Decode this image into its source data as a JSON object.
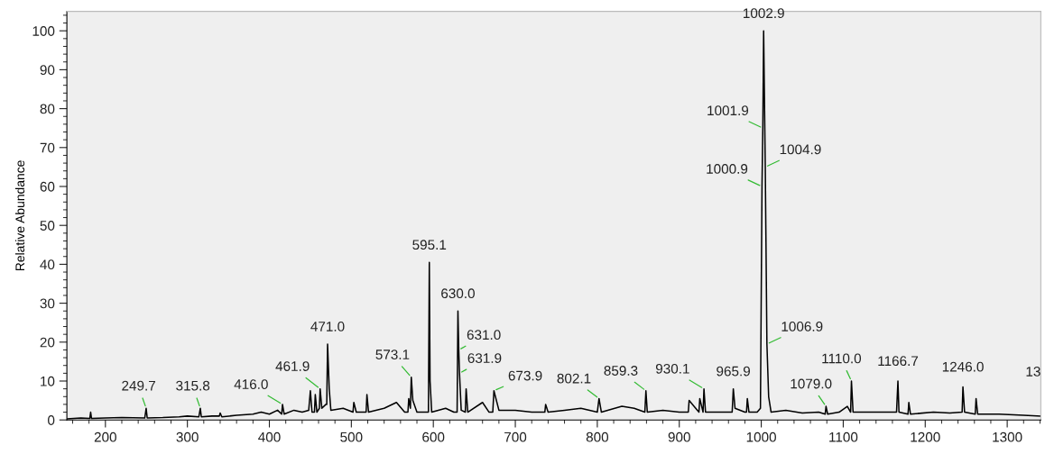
{
  "chart_data": {
    "type": "line",
    "ylabel": "Relative Abundance",
    "x": [
      153,
      170,
      181,
      182,
      183,
      200,
      220,
      248,
      249.7,
      251,
      270,
      290,
      300,
      314,
      315.8,
      317,
      330,
      339,
      340,
      342,
      360,
      380,
      390,
      400,
      410,
      415,
      416,
      418,
      430,
      440,
      448,
      450,
      452,
      455,
      456,
      458,
      461,
      461.9,
      464,
      469,
      470,
      471,
      473,
      475,
      490,
      502,
      503,
      506,
      518,
      519,
      521,
      540,
      555,
      565,
      569,
      570,
      572,
      573.1,
      575,
      580,
      594,
      595.1,
      596,
      598,
      615,
      625,
      629,
      630,
      631,
      631.9,
      634,
      639,
      640,
      642,
      660,
      668,
      672.5,
      673.9,
      680,
      700,
      720,
      736,
      737,
      740,
      760,
      780,
      800,
      802.1,
      805,
      830,
      845,
      858,
      859.3,
      861,
      880,
      900,
      911,
      912,
      920,
      924,
      925,
      929,
      930.1,
      932,
      950,
      964.5,
      965.9,
      968,
      980,
      982,
      983,
      985,
      995,
      999,
      1000.9,
      1001.9,
      1002.9,
      1004.9,
      1006.9,
      1009,
      1012,
      1030,
      1050,
      1070,
      1078,
      1079,
      1081,
      1095,
      1105,
      1109,
      1110,
      1112,
      1140,
      1165,
      1166.7,
      1168,
      1179,
      1180,
      1182,
      1210,
      1230,
      1245,
      1246,
      1248,
      1261,
      1262,
      1264,
      1290,
      1320,
      1341
    ],
    "series": [
      {
        "color": "#000000",
        "values": [
          0.3,
          0.5,
          0.4,
          2,
          0.4,
          0.5,
          0.6,
          0.5,
          3,
          0.5,
          0.6,
          0.8,
          1,
          0.8,
          3,
          0.8,
          1,
          1,
          1.8,
          0.8,
          1.2,
          1.5,
          2,
          1.5,
          2.5,
          1.5,
          4,
          1.5,
          2.5,
          2,
          2.5,
          7.5,
          2,
          2,
          6.5,
          2,
          3,
          8,
          3,
          4,
          4,
          19.5,
          8,
          2.5,
          3,
          2,
          4.5,
          2,
          2,
          6.5,
          2,
          3,
          4.5,
          2,
          2,
          5.5,
          3,
          11,
          5,
          2,
          2,
          40.5,
          10,
          2,
          3,
          2,
          2,
          28,
          18,
          12,
          2.5,
          2,
          8,
          2,
          4.5,
          2,
          2,
          7.5,
          2.5,
          2.5,
          2,
          2,
          4,
          2,
          2.5,
          3,
          2,
          5.5,
          2,
          3.5,
          3,
          2,
          7.5,
          2,
          2.5,
          2,
          2,
          5,
          3,
          2,
          5.5,
          2,
          8,
          2,
          2,
          2,
          8,
          3,
          2,
          2,
          5.5,
          2,
          2,
          3,
          60,
          75,
          100,
          65,
          19.5,
          6,
          2,
          2.5,
          1.8,
          2,
          1.5,
          3.5,
          1.5,
          2,
          3.5,
          2,
          10,
          2,
          2,
          2,
          10,
          2,
          1.5,
          4.5,
          1.5,
          2,
          1.8,
          2,
          8.5,
          2,
          1.5,
          5.5,
          1.5,
          1.5,
          1.2,
          1
        ]
      }
    ],
    "xlim": [
      153,
      1341
    ],
    "ylim": [
      0,
      105
    ],
    "xticks": [
      200,
      300,
      400,
      500,
      600,
      700,
      800,
      900,
      1000,
      1100,
      1200,
      1300
    ],
    "yticks": [
      0,
      10,
      20,
      30,
      40,
      50,
      60,
      70,
      80,
      90,
      100
    ],
    "grid": false,
    "marker": "none",
    "line_style": "solid",
    "annotations": [
      {
        "text": "249.7",
        "x": 249.7,
        "y": 3
      },
      {
        "text": "315.8",
        "x": 315.8,
        "y": 3
      },
      {
        "text": "416.0",
        "x": 416,
        "y": 4
      },
      {
        "text": "461.9",
        "x": 461.9,
        "y": 8
      },
      {
        "text": "471.0",
        "x": 471,
        "y": 19.5
      },
      {
        "text": "573.1",
        "x": 573.1,
        "y": 11
      },
      {
        "text": "595.1",
        "x": 595.1,
        "y": 40.5
      },
      {
        "text": "630.0",
        "x": 630,
        "y": 28
      },
      {
        "text": "631.0",
        "x": 631,
        "y": 18
      },
      {
        "text": "631.9",
        "x": 631.9,
        "y": 12
      },
      {
        "text": "673.9",
        "x": 673.9,
        "y": 7.5
      },
      {
        "text": "802.1",
        "x": 802.1,
        "y": 5.5
      },
      {
        "text": "859.3",
        "x": 859.3,
        "y": 7.5
      },
      {
        "text": "930.1",
        "x": 930.1,
        "y": 8
      },
      {
        "text": "965.9",
        "x": 965.9,
        "y": 8
      },
      {
        "text": "1000.9",
        "x": 1000.9,
        "y": 60
      },
      {
        "text": "1001.9",
        "x": 1001.9,
        "y": 75
      },
      {
        "text": "1002.9",
        "x": 1002.9,
        "y": 100
      },
      {
        "text": "1004.9",
        "x": 1004.9,
        "y": 65
      },
      {
        "text": "1006.9",
        "x": 1006.9,
        "y": 19.5
      },
      {
        "text": "1079.0",
        "x": 1079,
        "y": 3.5
      },
      {
        "text": "1110.0",
        "x": 1110,
        "y": 10
      },
      {
        "text": "1166.7",
        "x": 1166.7,
        "y": 10
      },
      {
        "text": "1246.0",
        "x": 1246,
        "y": 8.5
      },
      "13"
    ]
  }
}
